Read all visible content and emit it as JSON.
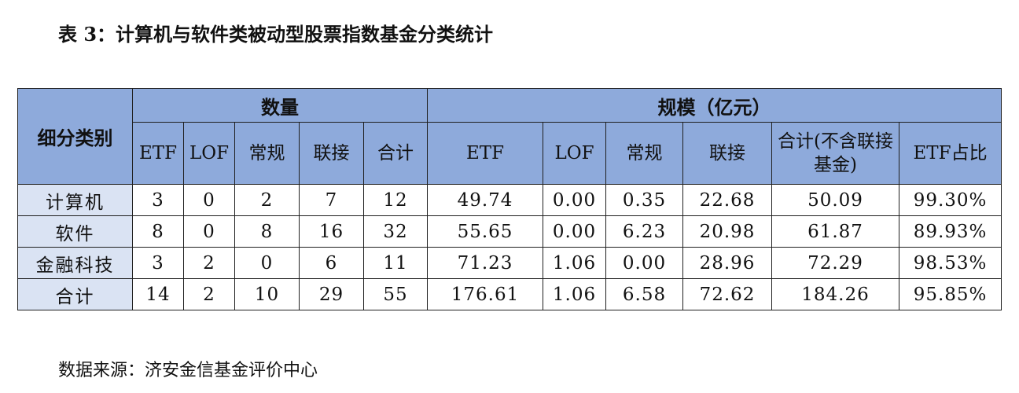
{
  "title": "表 3：计算机与软件类被动型股票指数基金分类统计",
  "table": {
    "group_headers": [
      "细分类别",
      "数量",
      "规模（亿元）"
    ],
    "sub_headers": [
      "ETF",
      "LOF",
      "常规",
      "联接",
      "合计",
      "ETF",
      "LOF",
      "常规",
      "联接",
      "合计(不含联接基金)",
      "ETF占比"
    ],
    "rows": [
      [
        "计算机",
        "3",
        "0",
        "2",
        "7",
        "12",
        "49.74",
        "0.00",
        "0.35",
        "22.68",
        "50.09",
        "99.30%"
      ],
      [
        "软件",
        "8",
        "0",
        "8",
        "16",
        "32",
        "55.65",
        "0.00",
        "6.23",
        "20.98",
        "61.87",
        "89.93%"
      ],
      [
        "金融科技",
        "3",
        "2",
        "0",
        "6",
        "11",
        "71.23",
        "1.06",
        "0.00",
        "28.96",
        "72.29",
        "98.53%"
      ],
      [
        "合计",
        "14",
        "2",
        "10",
        "29",
        "55",
        "176.61",
        "1.06",
        "6.58",
        "72.62",
        "184.26",
        "95.85%"
      ]
    ]
  },
  "source": "数据来源：济安金信基金评价中心"
}
